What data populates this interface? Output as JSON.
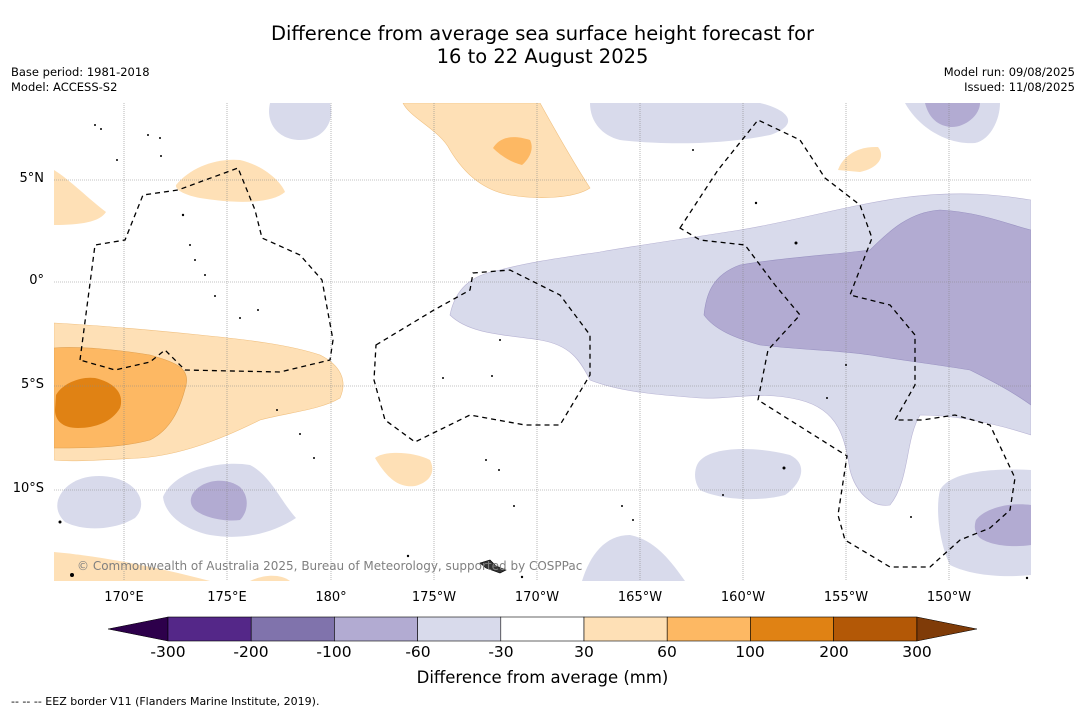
{
  "title": {
    "line1": "Difference from average sea surface height forecast for",
    "line2": "16 to 22 August 2025"
  },
  "meta_left": {
    "base_period": "Base period: 1981-2018",
    "model": "Model: ACCESS-S2"
  },
  "meta_right": {
    "model_run": "Model run: 09/08/2025",
    "issued": "Issued: 11/08/2025"
  },
  "map": {
    "lon_labels": [
      "170°E",
      "175°E",
      "180°",
      "175°W",
      "170°W",
      "165°W",
      "160°W",
      "155°W",
      "150°W"
    ],
    "lat_labels": [
      "5°N",
      "0°",
      "5°S",
      "10°S"
    ],
    "copyright": "© Commonwealth of Australia 2025, Bureau of Meteorology, supported by COSPPac"
  },
  "colorbar": {
    "labels": [
      "-300",
      "-200",
      "-100",
      "-60",
      "-30",
      "30",
      "60",
      "100",
      "200",
      "300"
    ],
    "colors": [
      "#542788",
      "#8073ac",
      "#b2abd2",
      "#d8daeb",
      "#ffffff",
      "#fee0b6",
      "#fdb863",
      "#e08214",
      "#b35806"
    ],
    "under_color": "#2d004b",
    "over_color": "#7f3b08",
    "title": "Difference from average (mm)"
  },
  "legend": {
    "eez": "--  --  -- EEZ border V11 (Flanders Marine Institute, 2019)."
  }
}
